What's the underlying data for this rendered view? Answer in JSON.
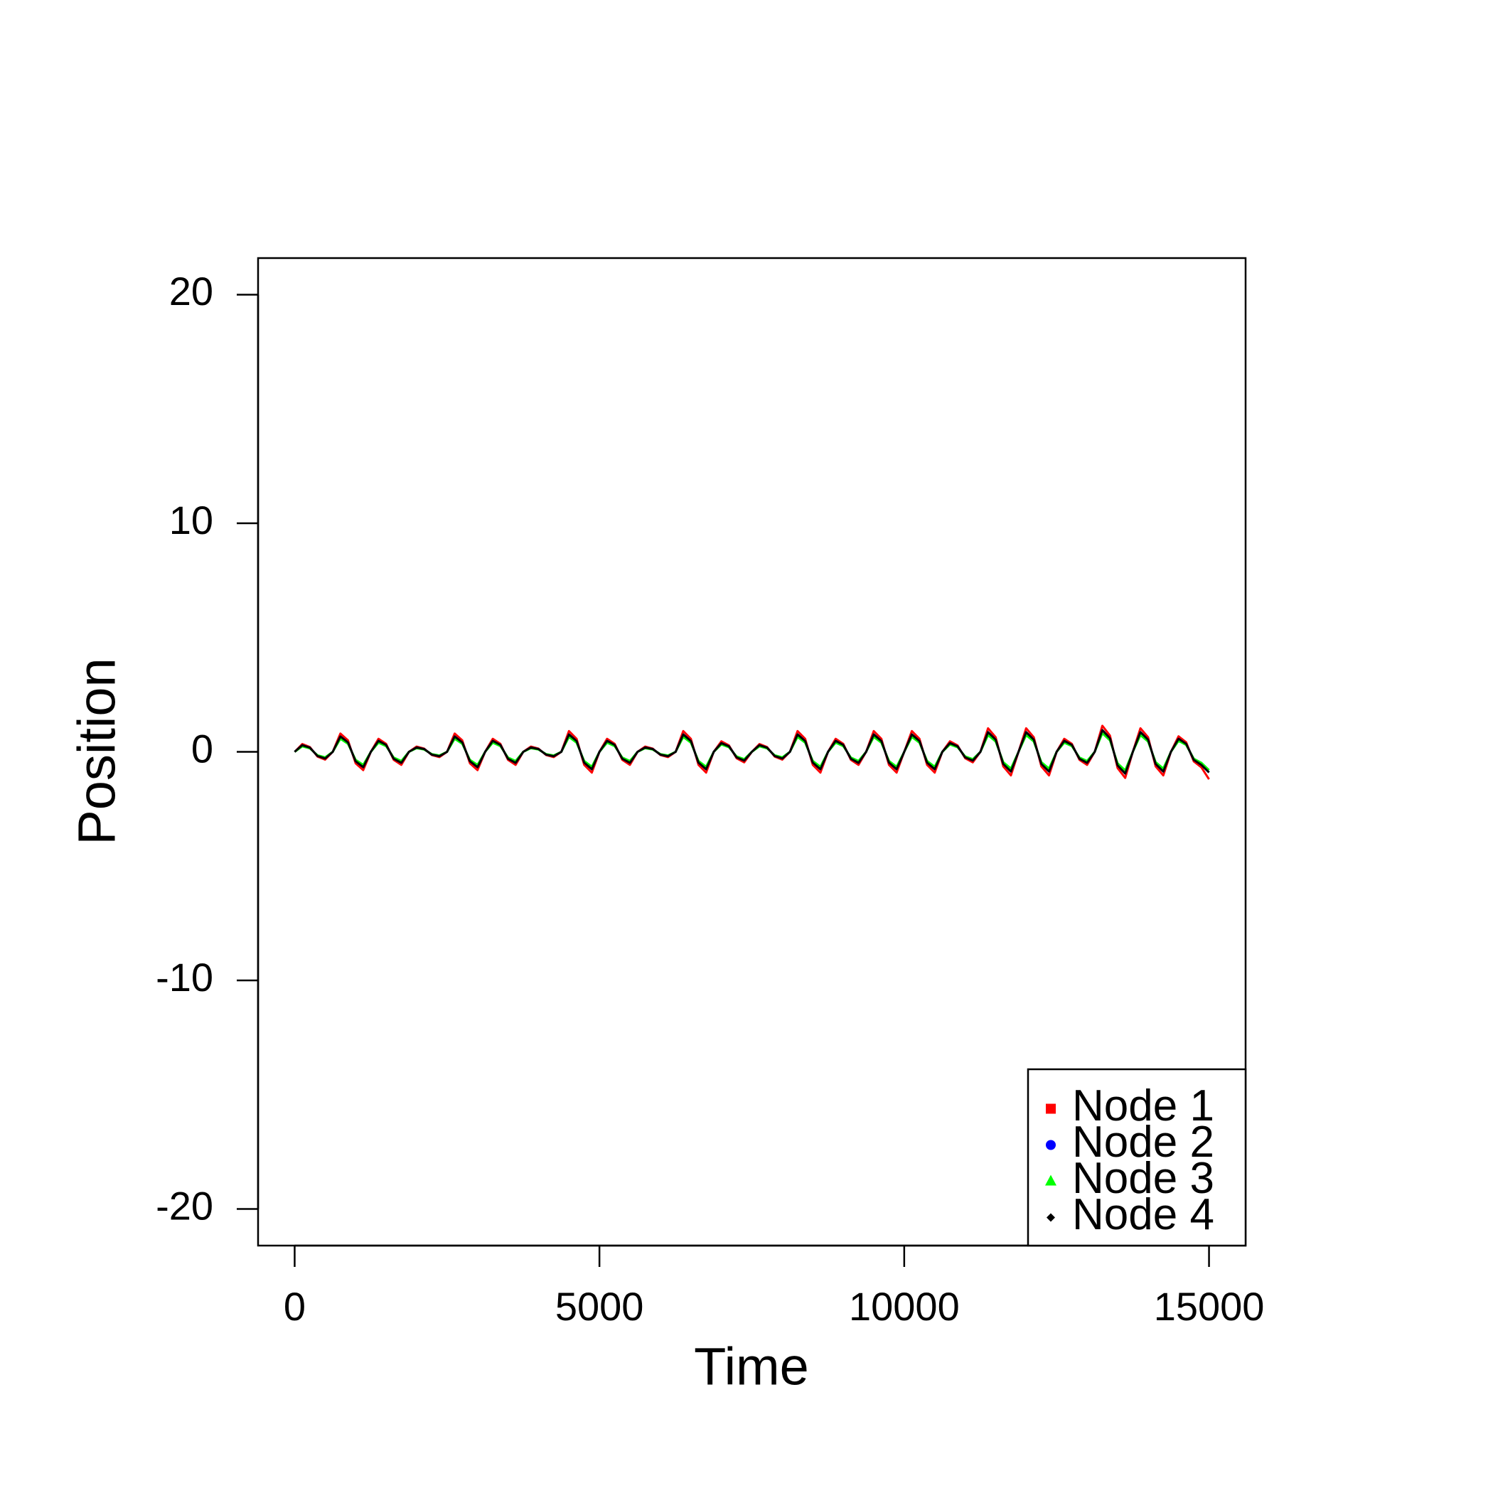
{
  "chart_data": {
    "type": "line",
    "x_label": "Time",
    "y_label": "Position",
    "xlim": [
      -600,
      15600
    ],
    "ylim": [
      -21.6,
      21.6
    ],
    "xticks": [
      0,
      5000,
      10000,
      15000
    ],
    "yticks": [
      -20,
      -10,
      0,
      10,
      20
    ],
    "legend": "bottomright",
    "x": [
      0,
      125,
      250,
      375,
      500,
      625,
      750,
      875,
      1000,
      1125,
      1250,
      1375,
      1500,
      1625,
      1750,
      1875,
      2000,
      2125,
      2250,
      2375,
      2500,
      2625,
      2750,
      2875,
      3000,
      3125,
      3250,
      3375,
      3500,
      3625,
      3750,
      3875,
      4000,
      4125,
      4250,
      4375,
      4500,
      4625,
      4750,
      4875,
      5000,
      5125,
      5250,
      5375,
      5500,
      5625,
      5750,
      5875,
      6000,
      6125,
      6250,
      6375,
      6500,
      6625,
      6750,
      6875,
      7000,
      7125,
      7250,
      7375,
      7500,
      7625,
      7750,
      7875,
      8000,
      8125,
      8250,
      8375,
      8500,
      8625,
      8750,
      8875,
      9000,
      9125,
      9250,
      9375,
      9500,
      9625,
      9750,
      9875,
      10000,
      10125,
      10250,
      10375,
      10500,
      10625,
      10750,
      10875,
      11000,
      11125,
      11250,
      11375,
      11500,
      11625,
      11750,
      11875,
      12000,
      12125,
      12250,
      12375,
      12500,
      12625,
      12750,
      12875,
      13000,
      13125,
      13250,
      13375,
      13500,
      13625,
      13750,
      13875,
      14000,
      14125,
      14250,
      14375,
      14500,
      14625,
      14750,
      14875,
      15000
    ],
    "series": [
      {
        "name": "Node 1",
        "color": "#ff0000",
        "symbol": "square",
        "values": [
          0,
          0.34,
          0.21,
          -0.21,
          -0.34,
          0,
          0.8,
          0.5,
          -0.5,
          -0.8,
          0,
          0.57,
          0.35,
          -0.35,
          -0.57,
          0,
          0.23,
          0.14,
          -0.14,
          -0.23,
          0,
          0.8,
          0.5,
          -0.5,
          -0.8,
          0,
          0.57,
          0.35,
          -0.35,
          -0.57,
          0,
          0.23,
          0.14,
          -0.14,
          -0.23,
          0,
          0.91,
          0.57,
          -0.57,
          -0.91,
          0,
          0.57,
          0.35,
          -0.35,
          -0.57,
          0,
          0.23,
          0.14,
          -0.14,
          -0.23,
          0,
          0.91,
          0.57,
          -0.57,
          -0.91,
          0,
          0.46,
          0.28,
          -0.28,
          -0.46,
          0,
          0.34,
          0.21,
          -0.21,
          -0.34,
          0,
          0.91,
          0.57,
          -0.57,
          -0.91,
          0,
          0.57,
          0.35,
          -0.35,
          -0.57,
          0,
          0.91,
          0.57,
          -0.57,
          -0.91,
          0,
          0.91,
          0.57,
          -0.57,
          -0.91,
          0,
          0.46,
          0.28,
          -0.28,
          -0.46,
          0,
          1.03,
          0.64,
          -0.64,
          -1.03,
          0,
          1.03,
          0.64,
          -0.64,
          -1.03,
          0,
          0.57,
          0.35,
          -0.35,
          -0.57,
          0,
          1.14,
          0.71,
          -0.71,
          -1.14,
          0,
          1.03,
          0.64,
          -0.64,
          -1.03,
          0,
          0.68,
          0.42,
          -0.42,
          -0.68,
          -1.2
        ]
      },
      {
        "name": "Node 2",
        "color": "#0000ff",
        "symbol": "circle",
        "values": [
          0,
          0.29,
          0.18,
          -0.18,
          -0.29,
          0,
          0.67,
          0.41,
          -0.41,
          -0.67,
          0,
          0.48,
          0.3,
          -0.3,
          -0.48,
          0,
          0.19,
          0.12,
          -0.12,
          -0.19,
          0,
          0.67,
          0.41,
          -0.41,
          -0.67,
          0,
          0.48,
          0.3,
          -0.3,
          -0.48,
          0,
          0.19,
          0.12,
          -0.12,
          -0.19,
          0,
          0.76,
          0.47,
          -0.47,
          -0.76,
          0,
          0.48,
          0.3,
          -0.3,
          -0.48,
          0,
          0.19,
          0.12,
          -0.12,
          -0.19,
          0,
          0.76,
          0.47,
          -0.47,
          -0.76,
          0,
          0.38,
          0.24,
          -0.24,
          -0.38,
          0,
          0.29,
          0.18,
          -0.18,
          -0.29,
          0,
          0.76,
          0.47,
          -0.47,
          -0.76,
          0,
          0.48,
          0.3,
          -0.3,
          -0.48,
          0,
          0.76,
          0.47,
          -0.47,
          -0.76,
          0,
          0.76,
          0.47,
          -0.47,
          -0.76,
          0,
          0.38,
          0.24,
          -0.24,
          -0.38,
          0,
          0.86,
          0.53,
          -0.53,
          -0.86,
          0,
          0.86,
          0.53,
          -0.53,
          -0.86,
          0,
          0.48,
          0.3,
          -0.3,
          -0.48,
          0,
          0.95,
          0.59,
          -0.59,
          -0.95,
          0,
          0.86,
          0.53,
          -0.53,
          -0.86,
          0,
          0.57,
          0.35,
          -0.35,
          -0.57,
          -0.9
        ]
      },
      {
        "name": "Node 3",
        "color": "#00ff00",
        "symbol": "triangle",
        "values": [
          0,
          0.24,
          0.15,
          -0.15,
          -0.24,
          0,
          0.57,
          0.35,
          -0.35,
          -0.57,
          0,
          0.4,
          0.25,
          -0.25,
          -0.4,
          0,
          0.16,
          0.1,
          -0.1,
          -0.16,
          0,
          0.57,
          0.35,
          -0.35,
          -0.57,
          0,
          0.4,
          0.25,
          -0.25,
          -0.4,
          0,
          0.16,
          0.1,
          -0.1,
          -0.16,
          0,
          0.65,
          0.4,
          -0.4,
          -0.65,
          0,
          0.4,
          0.25,
          -0.25,
          -0.4,
          0,
          0.16,
          0.1,
          -0.1,
          -0.16,
          0,
          0.65,
          0.4,
          -0.4,
          -0.65,
          0,
          0.32,
          0.2,
          -0.2,
          -0.32,
          0,
          0.24,
          0.15,
          -0.15,
          -0.24,
          0,
          0.65,
          0.4,
          -0.4,
          -0.65,
          0,
          0.4,
          0.25,
          -0.25,
          -0.4,
          0,
          0.65,
          0.4,
          -0.4,
          -0.65,
          0,
          0.65,
          0.4,
          -0.4,
          -0.65,
          0,
          0.32,
          0.2,
          -0.2,
          -0.32,
          0,
          0.73,
          0.45,
          -0.45,
          -0.73,
          0,
          0.73,
          0.45,
          -0.45,
          -0.73,
          0,
          0.4,
          0.25,
          -0.25,
          -0.4,
          0,
          0.81,
          0.5,
          -0.5,
          -0.81,
          0,
          0.73,
          0.45,
          -0.45,
          -0.73,
          0,
          0.48,
          0.3,
          -0.3,
          -0.48,
          -0.8
        ]
      },
      {
        "name": "Node 4",
        "color": "#000000",
        "symbol": "diamond",
        "values": [
          0,
          0.29,
          0.18,
          -0.18,
          -0.29,
          0,
          0.67,
          0.41,
          -0.41,
          -0.67,
          0,
          0.48,
          0.3,
          -0.3,
          -0.48,
          0,
          0.19,
          0.12,
          -0.12,
          -0.19,
          0,
          0.67,
          0.41,
          -0.41,
          -0.67,
          0,
          0.48,
          0.3,
          -0.3,
          -0.48,
          0,
          0.19,
          0.12,
          -0.12,
          -0.19,
          0,
          0.76,
          0.47,
          -0.47,
          -0.76,
          0,
          0.48,
          0.3,
          -0.3,
          -0.48,
          0,
          0.19,
          0.12,
          -0.12,
          -0.19,
          0,
          0.76,
          0.47,
          -0.47,
          -0.76,
          0,
          0.38,
          0.24,
          -0.24,
          -0.38,
          0,
          0.29,
          0.18,
          -0.18,
          -0.29,
          0,
          0.76,
          0.47,
          -0.47,
          -0.76,
          0,
          0.48,
          0.3,
          -0.3,
          -0.48,
          0,
          0.76,
          0.47,
          -0.47,
          -0.76,
          0,
          0.76,
          0.47,
          -0.47,
          -0.76,
          0,
          0.38,
          0.24,
          -0.24,
          -0.38,
          0,
          0.86,
          0.53,
          -0.53,
          -0.86,
          0,
          0.86,
          0.53,
          -0.53,
          -0.86,
          0,
          0.48,
          0.3,
          -0.3,
          -0.48,
          0,
          0.95,
          0.59,
          -0.59,
          -0.95,
          0,
          0.86,
          0.53,
          -0.53,
          -0.86,
          0,
          0.57,
          0.35,
          -0.35,
          -0.57,
          -0.9
        ]
      }
    ]
  }
}
